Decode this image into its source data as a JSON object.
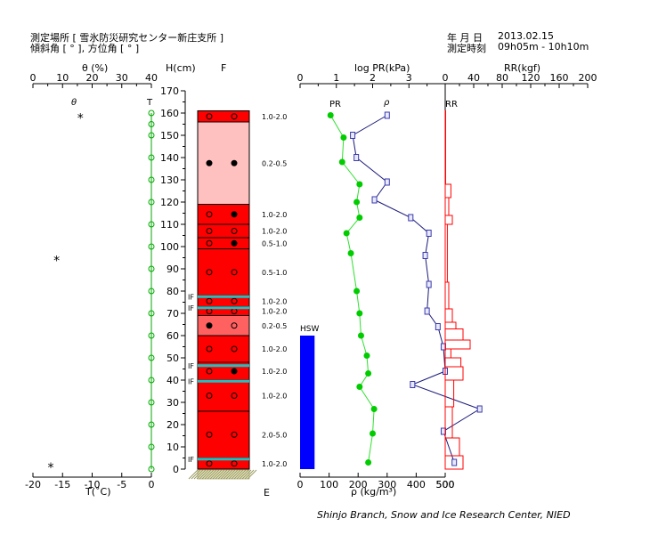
{
  "header": {
    "site_line": "測定場所 [ 雪氷防災研究センター新庄支所 ]",
    "angle_line": "傾斜角 [ ° ], 方位角 [ ° ]",
    "date_label": "年 月 日",
    "date_value": "2013.02.15",
    "time_label": "測定時刻",
    "time_value": "09h05m - 10h10m"
  },
  "footer": "Shinjo Branch, Snow and Ice Research Center, NIED",
  "chart_data": {
    "type": "snow-pit-profile",
    "height_axis": {
      "label": "H(cm)",
      "min": 0,
      "max": 170,
      "step": 10
    },
    "theta_axis": {
      "label": "θ (%)",
      "ticks": [
        0,
        10,
        20,
        30,
        40
      ],
      "min": 0,
      "max": 40
    },
    "temp_axis": {
      "label": "T(˚C)",
      "ticks": [
        -20,
        -15,
        -10,
        -5,
        0
      ],
      "min": -20,
      "max": 0
    },
    "pr_axis": {
      "label": "log PR(kPa)",
      "ticks": [
        0,
        1,
        2,
        3
      ],
      "min": 0,
      "max": 4
    },
    "rho_axis": {
      "label": "ρ (kg/m³)",
      "ticks": [
        0,
        100,
        200,
        300,
        400,
        500
      ],
      "min": 0,
      "max": 500
    },
    "rr_axis": {
      "label": "RR(kgf)",
      "ticks": [
        0,
        40,
        80,
        120,
        160,
        200
      ],
      "min": 0,
      "max": 200
    },
    "f_label": "F",
    "e_label": "E",
    "series_labels": {
      "theta": "θ",
      "temperature": "T",
      "pr": "PR",
      "rho": "ρ",
      "rr": "RR"
    },
    "theta_points": [
      {
        "h": 159,
        "v": -12
      },
      {
        "h": 95,
        "v": -16
      },
      {
        "h": 2,
        "v": -17
      }
    ],
    "temperature": [
      {
        "h": 160,
        "t": 0
      },
      {
        "h": 155,
        "t": 0
      },
      {
        "h": 150,
        "t": 0
      },
      {
        "h": 140,
        "t": 0
      },
      {
        "h": 130,
        "t": 0
      },
      {
        "h": 120,
        "t": 0
      },
      {
        "h": 110,
        "t": 0
      },
      {
        "h": 100,
        "t": 0
      },
      {
        "h": 90,
        "t": 0
      },
      {
        "h": 80,
        "t": 0
      },
      {
        "h": 70,
        "t": 0
      },
      {
        "h": 60,
        "t": 0
      },
      {
        "h": 50,
        "t": 0
      },
      {
        "h": 40,
        "t": 0
      },
      {
        "h": 30,
        "t": 0
      },
      {
        "h": 20,
        "t": 0
      },
      {
        "h": 10,
        "t": 0
      },
      {
        "h": 0,
        "t": 0
      }
    ],
    "density": [
      {
        "h": 159,
        "rho": 105
      },
      {
        "h": 149,
        "rho": 150
      },
      {
        "h": 138,
        "rho": 145
      },
      {
        "h": 128,
        "rho": 205
      },
      {
        "h": 120,
        "rho": 195
      },
      {
        "h": 113,
        "rho": 205
      },
      {
        "h": 106,
        "rho": 160
      },
      {
        "h": 97,
        "rho": 175
      },
      {
        "h": 80,
        "rho": 195
      },
      {
        "h": 70,
        "rho": 205
      },
      {
        "h": 60,
        "rho": 210
      },
      {
        "h": 51,
        "rho": 230
      },
      {
        "h": 43,
        "rho": 235
      },
      {
        "h": 37,
        "rho": 205
      },
      {
        "h": 27,
        "rho": 255
      },
      {
        "h": 16,
        "rho": 250
      },
      {
        "h": 3,
        "rho": 235
      }
    ],
    "log_pr": [
      {
        "h": 159,
        "v": 2.4
      },
      {
        "h": 150,
        "v": 1.45
      },
      {
        "h": 140,
        "v": 1.55
      },
      {
        "h": 129,
        "v": 2.4
      },
      {
        "h": 121,
        "v": 2.05
      },
      {
        "h": 113,
        "v": 3.05
      },
      {
        "h": 106,
        "v": 3.55
      },
      {
        "h": 96,
        "v": 3.45
      },
      {
        "h": 83,
        "v": 3.55
      },
      {
        "h": 71,
        "v": 3.5
      },
      {
        "h": 64,
        "v": 3.8
      },
      {
        "h": 55,
        "v": 3.95
      },
      {
        "h": 44,
        "v": 4.0
      },
      {
        "h": 38,
        "v": 3.1
      },
      {
        "h": 27,
        "v": 4.95
      },
      {
        "h": 17,
        "v": 3.95
      },
      {
        "h": 3,
        "v": 4.25
      }
    ],
    "rammsonde": [
      {
        "top": 161,
        "bottom": 128,
        "rr": 0
      },
      {
        "top": 128,
        "bottom": 122,
        "rr": 8
      },
      {
        "top": 122,
        "bottom": 114,
        "rr": 5
      },
      {
        "top": 114,
        "bottom": 110,
        "rr": 10
      },
      {
        "top": 110,
        "bottom": 84,
        "rr": 3
      },
      {
        "top": 84,
        "bottom": 72,
        "rr": 5
      },
      {
        "top": 72,
        "bottom": 66,
        "rr": 10
      },
      {
        "top": 66,
        "bottom": 63,
        "rr": 15
      },
      {
        "top": 63,
        "bottom": 58,
        "rr": 25
      },
      {
        "top": 58,
        "bottom": 54,
        "rr": 35
      },
      {
        "top": 54,
        "bottom": 50,
        "rr": 8
      },
      {
        "top": 50,
        "bottom": 46,
        "rr": 22
      },
      {
        "top": 46,
        "bottom": 40,
        "rr": 25
      },
      {
        "top": 40,
        "bottom": 28,
        "rr": 12
      },
      {
        "top": 28,
        "bottom": 14,
        "rr": 10
      },
      {
        "top": 14,
        "bottom": 6,
        "rr": 20
      },
      {
        "top": 6,
        "bottom": 0,
        "rr": 25
      }
    ],
    "hsw": {
      "label": "HSW",
      "height": 60,
      "rho_value": 50
    },
    "layers": [
      {
        "top": 161,
        "bottom": 156,
        "color": "#ff0000",
        "grain": "1.0-2.0",
        "sym": [
          "open",
          "open"
        ]
      },
      {
        "top": 156,
        "bottom": 119,
        "color": "#ffc0c0",
        "grain": "0.2-0.5",
        "sym": [
          "filled",
          "filled"
        ]
      },
      {
        "top": 119,
        "bottom": 110,
        "color": "#ff0000",
        "grain": "1.0-2.0",
        "sym": [
          "open",
          "filled"
        ]
      },
      {
        "top": 110,
        "bottom": 104,
        "color": "#ff0000",
        "grain": "1.0-2.0",
        "sym": [
          "open",
          "open"
        ]
      },
      {
        "top": 104,
        "bottom": 99,
        "color": "#ff0000",
        "grain": "0.5-1.0",
        "sym": [
          "open",
          "filled"
        ]
      },
      {
        "top": 99,
        "bottom": 78,
        "color": "#ff0000",
        "grain": "0.5-1.0",
        "sym": [
          "open",
          "open"
        ]
      },
      {
        "top": 78,
        "bottom": 73,
        "color": "#ff0000",
        "grain": "1.0-2.0",
        "sym": [
          "open",
          "open"
        ]
      },
      {
        "top": 73,
        "bottom": 69,
        "color": "#ff0000",
        "grain": "1.0-2.0",
        "sym": [
          "open",
          "open"
        ]
      },
      {
        "top": 69,
        "bottom": 60,
        "color": "#ff6060",
        "grain": "0.2-0.5",
        "sym": [
          "filled",
          "open"
        ]
      },
      {
        "top": 60,
        "bottom": 48,
        "color": "#ff0000",
        "grain": "1.0-2.0",
        "sym": [
          "open",
          "open"
        ]
      },
      {
        "top": 48,
        "bottom": 40,
        "color": "#ff0000",
        "grain": "1.0-2.0",
        "sym": [
          "open",
          "filled"
        ]
      },
      {
        "top": 40,
        "bottom": 26,
        "color": "#ff0000",
        "grain": "1.0-2.0",
        "sym": [
          "open",
          "open"
        ]
      },
      {
        "top": 26,
        "bottom": 5,
        "color": "#ff0000",
        "grain": "2.0-5.0",
        "sym": [
          "open",
          "open"
        ]
      },
      {
        "top": 5,
        "bottom": 0,
        "color": "#ff0000",
        "grain": "1.0-2.0",
        "sym": [
          "open",
          "open"
        ]
      }
    ],
    "ice_films": [
      {
        "h": 77.5,
        "label": "IF"
      },
      {
        "h": 72.5,
        "label": "IF"
      },
      {
        "h": 46.5,
        "label": "IF"
      },
      {
        "h": 39.5,
        "label": "IF"
      },
      {
        "h": 4.5,
        "label": "IF"
      }
    ],
    "colors": {
      "layer_outline": "#000000",
      "ice_film": "#20c0c0",
      "pr_line": "#1a1a7a",
      "pr_marker": "#3a3aaa",
      "density": "#00cc00",
      "density_line": "#30e030",
      "temperature": "#00aa00",
      "rr": "#ff0000",
      "hsw": "#0000ff",
      "ground": "#9a9a60"
    }
  }
}
